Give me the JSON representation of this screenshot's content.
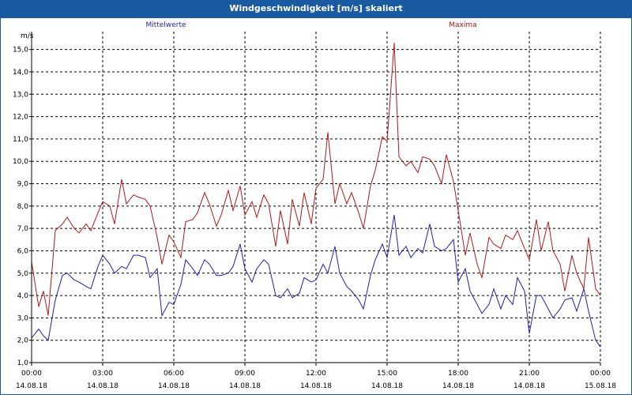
{
  "window": {
    "title": "Windgeschwindigkeit [m/s] skaliert"
  },
  "colors": {
    "title_bar": "#1a5aa0",
    "mittelwerte": "#1f1fb0",
    "maxima": "#b01818",
    "grid": "#000000"
  },
  "chart_data": {
    "type": "line",
    "title": "Windgeschwindigkeit [m/s] skaliert",
    "ylabel": "m/s",
    "xlabel": "",
    "ylim": [
      1.0,
      15.8
    ],
    "yticks": [
      "1,0",
      "2,0",
      "3,0",
      "4,0",
      "5,0",
      "6,0",
      "7,0",
      "8,0",
      "9,0",
      "10,0",
      "11,0",
      "12,0",
      "13,0",
      "14,0",
      "15,0"
    ],
    "x_range_hours": [
      0,
      24
    ],
    "xticks": [
      {
        "time": "00:00",
        "date": "14.08.18"
      },
      {
        "time": "03:00",
        "date": "14.08.18"
      },
      {
        "time": "06:00",
        "date": "14.08.18"
      },
      {
        "time": "09:00",
        "date": "14.08.18"
      },
      {
        "time": "12:00",
        "date": "14.08.18"
      },
      {
        "time": "15:00",
        "date": "14.08.18"
      },
      {
        "time": "18:00",
        "date": "14.08.18"
      },
      {
        "time": "21:00",
        "date": "14.08.18"
      },
      {
        "time": "00:00",
        "date": "15.08.18"
      }
    ],
    "grid": true,
    "legend_position": "top",
    "series": [
      {
        "name": "Mittelwerte",
        "color": "#1f1fb0",
        "x": [
          0.0,
          0.3,
          0.5,
          0.7,
          1.0,
          1.3,
          1.5,
          1.8,
          2.0,
          2.3,
          2.5,
          2.8,
          3.0,
          3.3,
          3.5,
          3.8,
          4.0,
          4.3,
          4.5,
          4.8,
          5.0,
          5.3,
          5.5,
          5.8,
          6.0,
          6.3,
          6.5,
          6.8,
          7.0,
          7.3,
          7.5,
          7.8,
          8.0,
          8.3,
          8.5,
          8.8,
          9.0,
          9.3,
          9.5,
          9.8,
          10.0,
          10.3,
          10.5,
          10.8,
          11.0,
          11.3,
          11.5,
          11.8,
          12.0,
          12.3,
          12.5,
          12.8,
          13.0,
          13.3,
          13.5,
          13.8,
          14.0,
          14.3,
          14.5,
          14.8,
          15.0,
          15.3,
          15.5,
          15.8,
          16.0,
          16.3,
          16.5,
          16.8,
          17.0,
          17.3,
          17.5,
          17.8,
          18.0,
          18.3,
          18.5,
          18.8,
          19.0,
          19.3,
          19.5,
          19.8,
          20.0,
          20.3,
          20.5,
          20.8,
          21.0,
          21.3,
          21.5,
          21.8,
          22.0,
          22.3,
          22.5,
          22.8,
          23.0,
          23.3,
          23.5,
          23.8,
          24.0
        ],
        "values": [
          2.1,
          2.5,
          2.2,
          2.0,
          3.8,
          4.9,
          5.0,
          4.7,
          4.6,
          4.4,
          4.3,
          5.3,
          5.8,
          5.4,
          5.0,
          5.3,
          5.2,
          5.8,
          5.8,
          5.7,
          4.8,
          5.2,
          3.1,
          3.7,
          3.6,
          4.5,
          5.6,
          5.2,
          4.9,
          5.6,
          5.4,
          4.9,
          4.9,
          5.0,
          5.3,
          6.3,
          5.2,
          4.6,
          5.2,
          5.6,
          5.4,
          4.0,
          3.9,
          4.3,
          3.9,
          4.1,
          4.8,
          4.6,
          4.7,
          5.4,
          5.0,
          6.2,
          5.0,
          4.4,
          4.2,
          3.8,
          3.4,
          4.9,
          5.6,
          6.3,
          5.7,
          7.6,
          5.8,
          6.2,
          5.7,
          6.1,
          5.9,
          7.2,
          6.2,
          6.0,
          6.1,
          6.5,
          4.6,
          5.2,
          4.2,
          3.6,
          3.2,
          3.6,
          4.3,
          3.4,
          4.0,
          3.6,
          4.8,
          4.2,
          2.3,
          4.0,
          4.0,
          3.4,
          3.0,
          3.4,
          3.8,
          3.9,
          3.3,
          4.3,
          3.3,
          2.0,
          1.7
        ]
      },
      {
        "name": "Maxima",
        "color": "#b01818",
        "x": [
          0.0,
          0.3,
          0.5,
          0.7,
          1.0,
          1.3,
          1.5,
          1.8,
          2.0,
          2.3,
          2.5,
          2.8,
          3.0,
          3.3,
          3.5,
          3.8,
          4.0,
          4.3,
          4.5,
          4.8,
          5.0,
          5.3,
          5.5,
          5.8,
          6.0,
          6.3,
          6.5,
          6.8,
          7.0,
          7.3,
          7.5,
          7.8,
          8.0,
          8.3,
          8.5,
          8.8,
          9.0,
          9.3,
          9.5,
          9.8,
          10.0,
          10.3,
          10.5,
          10.8,
          11.0,
          11.3,
          11.5,
          11.8,
          12.0,
          12.3,
          12.5,
          12.8,
          13.0,
          13.3,
          13.5,
          13.8,
          14.0,
          14.3,
          14.5,
          14.8,
          15.0,
          15.3,
          15.5,
          15.8,
          16.0,
          16.3,
          16.5,
          16.8,
          17.0,
          17.3,
          17.5,
          17.8,
          18.0,
          18.3,
          18.5,
          18.8,
          19.0,
          19.3,
          19.5,
          19.8,
          20.0,
          20.3,
          20.5,
          20.8,
          21.0,
          21.3,
          21.5,
          21.8,
          22.0,
          22.3,
          22.5,
          22.8,
          23.0,
          23.3,
          23.5,
          23.8,
          24.0
        ],
        "values": [
          5.5,
          3.5,
          4.2,
          3.1,
          6.9,
          7.2,
          7.5,
          7.0,
          6.8,
          7.2,
          6.9,
          7.7,
          8.2,
          8.0,
          7.2,
          9.2,
          8.1,
          8.5,
          8.4,
          8.3,
          8.0,
          6.6,
          5.4,
          6.7,
          6.4,
          5.7,
          7.3,
          7.4,
          7.7,
          8.6,
          8.1,
          7.1,
          7.6,
          8.7,
          7.8,
          8.9,
          7.6,
          8.2,
          7.5,
          8.5,
          8.1,
          6.2,
          7.8,
          6.3,
          8.3,
          7.1,
          8.6,
          7.2,
          8.8,
          9.2,
          11.3,
          8.1,
          9.0,
          8.1,
          8.6,
          7.7,
          7.0,
          8.9,
          9.6,
          11.1,
          10.9,
          15.3,
          10.2,
          9.8,
          10.0,
          9.5,
          10.2,
          10.1,
          9.8,
          9.0,
          10.3,
          9.1,
          7.8,
          5.8,
          6.8,
          5.4,
          4.8,
          6.6,
          6.3,
          6.1,
          6.7,
          6.5,
          6.9,
          6.1,
          5.6,
          7.4,
          6.0,
          7.3,
          6.0,
          5.4,
          4.2,
          5.8,
          5.0,
          4.3,
          6.6,
          4.3,
          4.0
        ]
      }
    ]
  }
}
